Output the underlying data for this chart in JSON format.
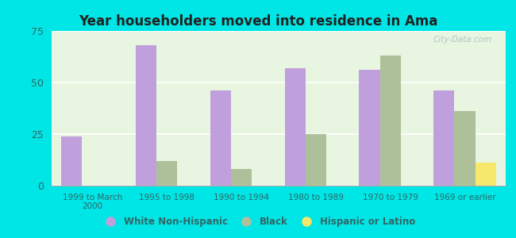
{
  "title": "Year householders moved into residence in Ama",
  "categories": [
    "1999 to March\n2000",
    "1995 to 1998",
    "1990 to 1994",
    "1980 to 1989",
    "1970 to 1979",
    "1969 or earlier"
  ],
  "white_non_hispanic": [
    24,
    68,
    46,
    57,
    56,
    46
  ],
  "black": [
    0,
    12,
    8,
    25,
    63,
    36
  ],
  "hispanic_or_latino": [
    0,
    0,
    0,
    0,
    0,
    11
  ],
  "bar_colors": {
    "white_non_hispanic": "#c0a0dc",
    "black": "#aec09a",
    "hispanic_or_latino": "#f5e86a"
  },
  "ylim": [
    0,
    75
  ],
  "yticks": [
    0,
    25,
    50,
    75
  ],
  "background_color": "#00e5e5",
  "plot_bg": "#e8f5e0",
  "legend_labels": [
    "White Non-Hispanic",
    "Black",
    "Hispanic or Latino"
  ],
  "watermark": "City-Data.com",
  "bar_width": 0.28,
  "figsize": [
    6.5,
    3.0
  ],
  "dpi": 100
}
